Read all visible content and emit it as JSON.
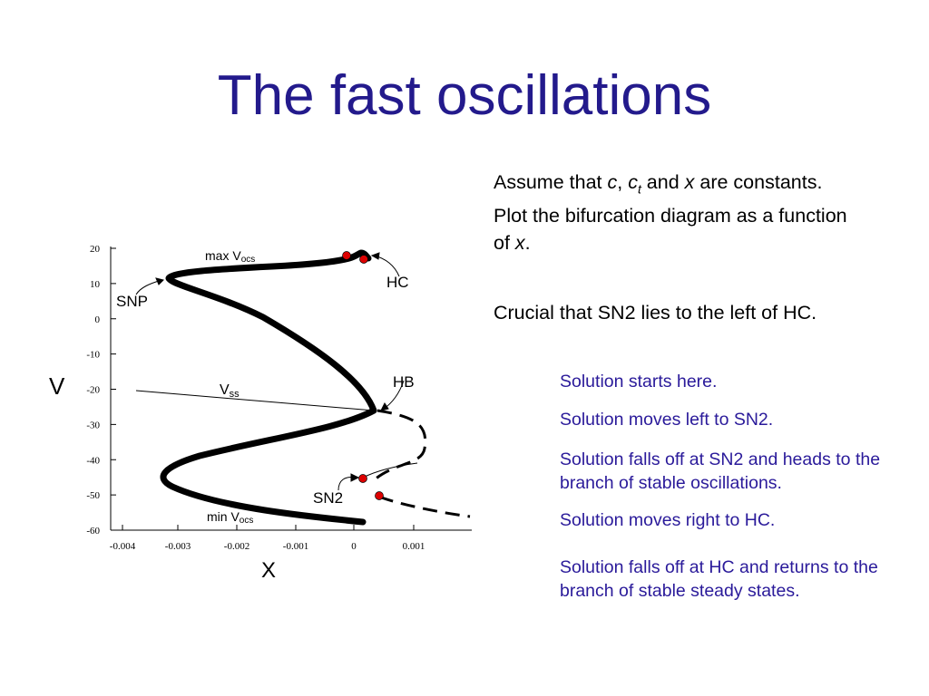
{
  "slide": {
    "title": "The fast oscillations",
    "intro": {
      "p1_a": "Assume that ",
      "var_c": "c",
      "sep1": ", ",
      "var_ct_base": "c",
      "var_ct_sub": "t",
      "p1_b": " and ",
      "var_x": "x",
      "p1_c": " are constants.",
      "line2": "Plot the bifurcation diagram as a function",
      "line3_a": "of ",
      "line3_x": "x",
      "line3_dot": "."
    },
    "crucial": "Crucial that SN2 lies to the left of HC.",
    "steps": [
      "Solution starts here.",
      "Solution moves left to SN2.",
      "Solution falls off at SN2 and heads to the branch of stable oscillations.",
      "Solution moves right to HC.",
      "Solution falls off at HC and returns to the branch of stable steady states."
    ]
  },
  "figure": {
    "ylabel": "V",
    "xlabel": "X",
    "y_ticks": [
      "20",
      "10",
      "0",
      "-10",
      "-20",
      "-30",
      "-40",
      "-50",
      "-60"
    ],
    "x_ticks": [
      "-0.004",
      "-0.003",
      "-0.002",
      "-0.001",
      "0",
      "0.001"
    ],
    "labels": {
      "max_v": "max V",
      "max_v_sub": "ocs",
      "min_v": "min V",
      "min_v_sub": "ocs",
      "vss": "V",
      "vss_sub": "ss",
      "snp": "SNP",
      "hc": "HC",
      "hb": "HB",
      "sn2": "SN2"
    },
    "colors": {
      "curve": "#000000",
      "marker": "#dd0000",
      "title": "#231a8c",
      "steps": "#2a1a9a"
    }
  },
  "chart_data": {
    "type": "line",
    "xlabel": "X",
    "ylabel": "V",
    "xlim": [
      -0.0045,
      0.00195
    ],
    "ylim": [
      -60,
      20
    ],
    "x_ticks": [
      -0.004,
      -0.003,
      -0.002,
      -0.001,
      0,
      0.001
    ],
    "y_ticks": [
      20,
      10,
      0,
      -10,
      -20,
      -30,
      -40,
      -50,
      -60
    ],
    "series": [
      {
        "name": "max Vocs",
        "points": [
          [
            -0.0031,
            12
          ],
          [
            -0.0029,
            13
          ],
          [
            -0.002,
            14.5
          ],
          [
            -0.001,
            15.5
          ],
          [
            -0.0001,
            17.3
          ],
          [
            0.0001,
            18.3
          ],
          [
            0.0002,
            17.5
          ]
        ]
      },
      {
        "name": "Vss",
        "points": [
          [
            -0.0037,
            -20
          ],
          [
            -0.0003,
            -25.7
          ]
        ]
      },
      {
        "name": "Vss unstable",
        "points": [
          [
            0.0004,
            -25.8
          ],
          [
            0.0015,
            -60
          ]
        ]
      },
      {
        "name": "stable oscillations (bold)",
        "points": [
          [
            -0.0031,
            12
          ],
          [
            -0.0025,
            3
          ],
          [
            -0.0012,
            -10
          ],
          [
            0.00028,
            -25.7
          ],
          [
            -0.001,
            -36
          ],
          [
            -0.0023,
            -41
          ],
          [
            -0.0031,
            -46
          ],
          [
            -0.0028,
            -49
          ],
          [
            -0.0015,
            -52
          ],
          [
            0.0002,
            -56
          ]
        ]
      },
      {
        "name": "unstable oscillations (dashed)",
        "points": [
          [
            0.0003,
            -26
          ],
          [
            0.00087,
            -28.5
          ],
          [
            0.0011,
            -36
          ],
          [
            0.0008,
            -41
          ],
          [
            0.0004,
            -49
          ],
          [
            0.0012,
            -54
          ],
          [
            0.002,
            -56
          ]
        ]
      }
    ],
    "markers": [
      {
        "label": "SN2",
        "x": 0.0001,
        "y": -45
      },
      {
        "label": "",
        "x": 0.0004,
        "y": -50
      },
      {
        "label": "",
        "x": -0.0001,
        "y": 17.5
      },
      {
        "label": "HC",
        "x": 0.00015,
        "y": 16.5
      }
    ]
  }
}
